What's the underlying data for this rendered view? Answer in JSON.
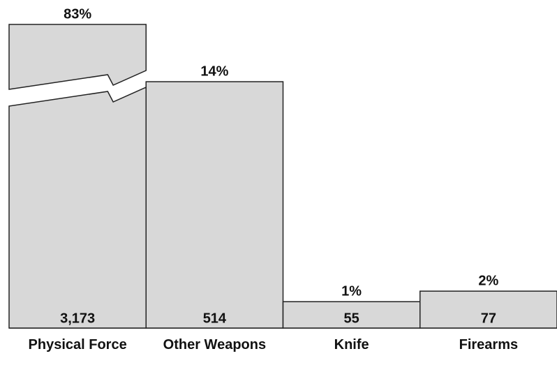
{
  "chart_data": {
    "type": "bar",
    "categories": [
      "Physical Force",
      "Other Weapons",
      "Knife",
      "Firearms"
    ],
    "values": [
      3173,
      514,
      55,
      77
    ],
    "value_labels": [
      "3,173",
      "514",
      "55",
      "77"
    ],
    "percent_labels": [
      "83%",
      "14%",
      "1%",
      "2%"
    ],
    "color": "#d8d8d8",
    "ylim": [
      0,
      600
    ]
  }
}
